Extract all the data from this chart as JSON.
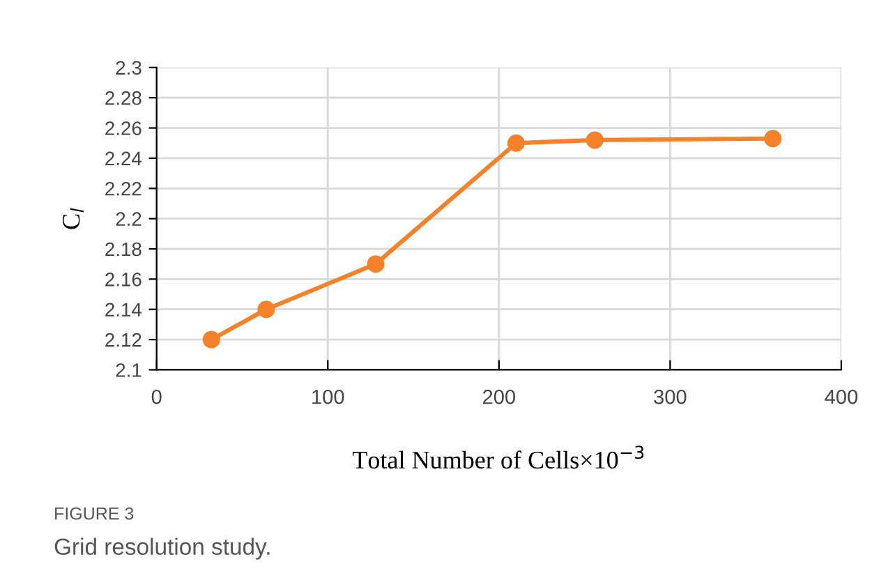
{
  "chart_data": {
    "type": "line",
    "xlabel": "Total Number of Cells×10$^{−3}$",
    "ylabel": "C$_{l}$",
    "x": [
      32,
      64,
      128,
      210,
      256,
      360
    ],
    "series": [
      {
        "color": "#f5822a",
        "values": [
          2.12,
          2.14,
          2.17,
          2.25,
          2.252,
          2.253
        ]
      }
    ],
    "xlim": [
      0,
      400
    ],
    "xticks": [
      0,
      100,
      200,
      300,
      400
    ],
    "ylim": [
      2.1,
      2.3
    ],
    "yticks": [
      {
        "value": 2.1,
        "label": "2.1"
      },
      {
        "value": 2.12,
        "label": "2.12"
      },
      {
        "value": 2.14,
        "label": "2.14"
      },
      {
        "value": 2.16,
        "label": "2.16"
      },
      {
        "value": 2.18,
        "label": "2.18"
      },
      {
        "value": 2.2,
        "label": "2.2"
      },
      {
        "value": 2.22,
        "label": "2.22"
      },
      {
        "value": 2.24,
        "label": "2.24"
      },
      {
        "value": 2.26,
        "label": "2.26"
      },
      {
        "value": 2.28,
        "label": "2.28"
      },
      {
        "value": 2.3,
        "label": "2.3"
      }
    ],
    "grid": true,
    "marker": "circle",
    "line_style": "solid",
    "legend": false,
    "annotations": [
      "FIGURE 3",
      "Grid resolution study."
    ]
  }
}
